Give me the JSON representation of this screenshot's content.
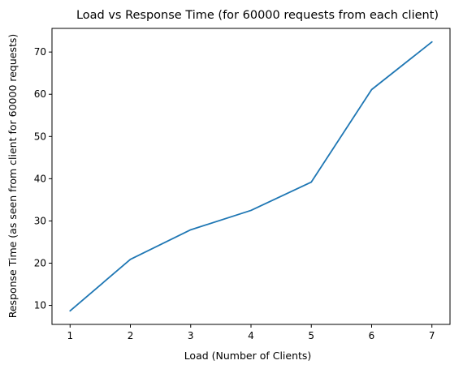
{
  "chart_data": {
    "type": "line",
    "title": "Load vs Response Time (for 60000 requests from each client)",
    "xlabel": "Load (Number of Clients)",
    "ylabel": "Response Time (as seen from client for 60000 requests)",
    "x": [
      1,
      2,
      3,
      4,
      5,
      6,
      7
    ],
    "series": [
      {
        "values": [
          8.7,
          20.9,
          27.9,
          32.5,
          39.2,
          61.1,
          72.4
        ]
      }
    ],
    "xticks": [
      1,
      2,
      3,
      4,
      5,
      6,
      7
    ],
    "yticks": [
      10,
      20,
      30,
      40,
      50,
      60,
      70
    ],
    "xlim": [
      0.7,
      7.3
    ],
    "ylim": [
      5.5,
      75.6
    ],
    "grid": false,
    "line_color": "#1f77b4"
  }
}
